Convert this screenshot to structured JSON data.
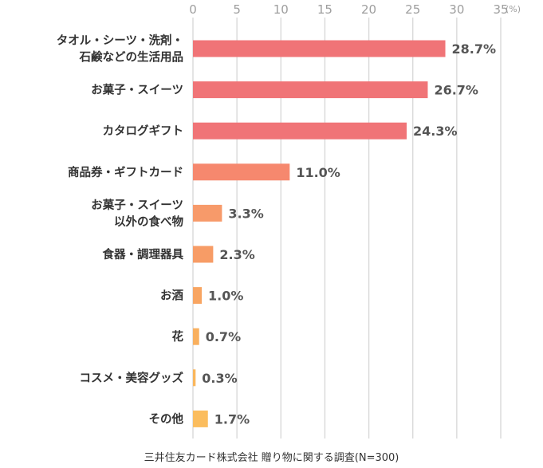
{
  "chart_data": {
    "type": "bar",
    "orientation": "horizontal",
    "unit_label": "(%)",
    "xlim": [
      0,
      35
    ],
    "ticks": [
      0,
      5,
      10,
      15,
      20,
      25,
      30,
      35
    ],
    "grid": true,
    "categories": [
      [
        "タオル・シーツ・洗剤・",
        "石鹸などの生活用品"
      ],
      [
        "お菓子・スイーツ"
      ],
      [
        "カタログギフト"
      ],
      [
        "商品券・ギフトカード"
      ],
      [
        "お菓子・スイーツ",
        "以外の食べ物"
      ],
      [
        "食器・調理器具"
      ],
      [
        "お酒"
      ],
      [
        "花"
      ],
      [
        "コスメ・美容グッズ"
      ],
      [
        "その他"
      ]
    ],
    "values": [
      28.7,
      26.7,
      24.3,
      11.0,
      3.3,
      2.3,
      1.0,
      0.7,
      0.3,
      1.7
    ],
    "value_labels": [
      "28.7%",
      "26.7%",
      "24.3%",
      "11.0%",
      "3.3%",
      "2.3%",
      "1.0%",
      "0.7%",
      "0.3%",
      "1.7%"
    ],
    "colors": [
      "#f07477",
      "#f07477",
      "#f07477",
      "#f6886e",
      "#f79a6a",
      "#f79c66",
      "#f8a562",
      "#f9b05f",
      "#fab75c",
      "#fbbd5e"
    ]
  },
  "source": "三井住友カード株式会社 贈り物に関する調査(N=300)"
}
